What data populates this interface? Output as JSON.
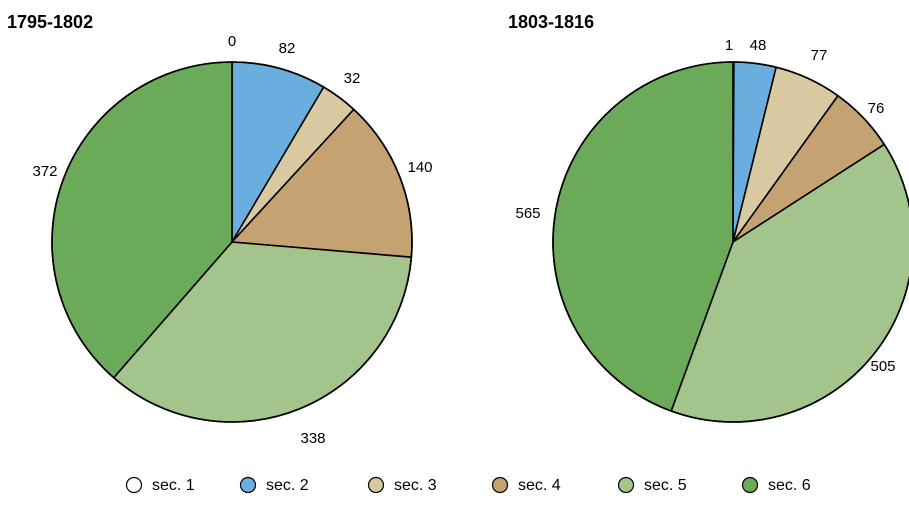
{
  "chart_data": {
    "type": "pie",
    "legend_position": "bottom",
    "categories": [
      "sec. 1",
      "sec. 2",
      "sec. 3",
      "sec. 4",
      "sec. 5",
      "sec. 6"
    ],
    "colors": [
      "#ffffff",
      "#6aaee0",
      "#d9c9a0",
      "#c4a272",
      "#a3c48a",
      "#6aaa58"
    ],
    "pies": [
      {
        "title": "1795-1802",
        "values": [
          0,
          82,
          32,
          140,
          338,
          372
        ]
      },
      {
        "title": "1803-1816",
        "values": [
          1,
          48,
          77,
          76,
          505,
          565
        ]
      }
    ]
  }
}
